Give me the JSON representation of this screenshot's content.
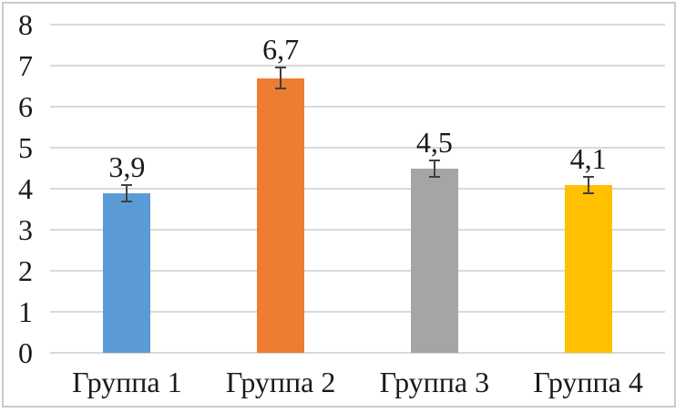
{
  "chart_data": {
    "type": "bar",
    "categories": [
      "Группа 1",
      "Группа 2",
      "Группа 3",
      "Группа 4"
    ],
    "values": [
      3.9,
      6.7,
      4.5,
      4.1
    ],
    "value_labels": [
      "3,9",
      "6,7",
      "4,5",
      "4,1"
    ],
    "errors": [
      0.2,
      0.25,
      0.2,
      0.2
    ],
    "bar_colors": [
      "#5B9BD5",
      "#ED7D31",
      "#A5A5A5",
      "#FFC000"
    ],
    "title": "",
    "xlabel": "",
    "ylabel": "",
    "ylim": [
      0,
      8
    ],
    "ytick_labels": [
      "0",
      "1",
      "2",
      "3",
      "4",
      "5",
      "6",
      "7",
      "8"
    ],
    "ytick_interval": 1,
    "grid": "horizontal",
    "legend": "none",
    "decimal_separator": ",",
    "gridline_color": "#d9d9d9",
    "error_bar_color": "#404040",
    "text_color": "#1a1a1a",
    "frame_border_color": "#cbcbcb",
    "background_color": "#ffffff"
  }
}
